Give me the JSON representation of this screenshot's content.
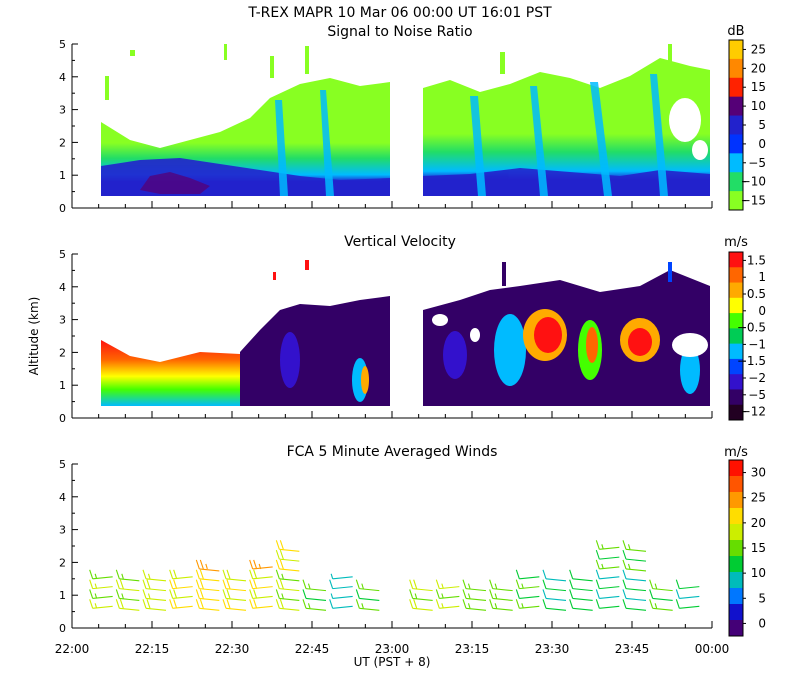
{
  "figure_title": "T-REX   MAPR 10 Mar 06   00:00 UT   16:01   PST",
  "shared_axes": {
    "xlabel": "UT  (PST + 8)",
    "ylabel": "Altitude (km)",
    "x_ticks": [
      "22:00",
      "22:15",
      "22:30",
      "22:45",
      "23:00",
      "23:15",
      "23:30",
      "23:45",
      "00:00"
    ],
    "y_ticks": [
      "0",
      "1",
      "2",
      "3",
      "4",
      "5"
    ],
    "xlim_minutes": [
      0,
      120
    ],
    "ylim_km": [
      0,
      5
    ]
  },
  "chart_data": [
    {
      "type": "heatmap",
      "title": "Signal to Noise Ratio",
      "units": "dB",
      "colorbar_labels": [
        "25",
        "20",
        "15",
        "10",
        "5",
        "0",
        "−5",
        "−10",
        "−15"
      ],
      "colorbar_colors": [
        "#ffcc00",
        "#ff8800",
        "#ff2200",
        "#550077",
        "#2222cc",
        "#0033ff",
        "#00bbff",
        "#22dd66",
        "#88ff22"
      ],
      "xlim_minutes": [
        0,
        120
      ],
      "ylim_km": [
        0,
        5
      ],
      "data_gap_minutes": [
        57,
        63
      ]
    },
    {
      "type": "heatmap",
      "title": "Vertical Velocity",
      "units": "m/s",
      "colorbar_labels": [
        "1.5",
        "1",
        "0.5",
        "0",
        "−0.5",
        "−1",
        "−1.5",
        "−2",
        "−5",
        "−12"
      ],
      "colorbar_colors": [
        "#ff1111",
        "#ff6600",
        "#ffaa00",
        "#ffff00",
        "#44ff00",
        "#00cc55",
        "#00bbff",
        "#0044ff",
        "#3311cc",
        "#330066",
        "#220022"
      ],
      "xlim_minutes": [
        0,
        120
      ],
      "ylim_km": [
        0,
        5
      ],
      "data_gap_minutes": [
        57,
        63
      ]
    },
    {
      "type": "scatter",
      "title": "FCA 5 Minute Averaged Winds",
      "units": "m/s",
      "colorbar_labels": [
        "30",
        "25",
        "20",
        "15",
        "10",
        "5",
        "0"
      ],
      "colorbar_colors": [
        "#ff1100",
        "#ff5500",
        "#ff9900",
        "#ffdd00",
        "#ccee00",
        "#66dd00",
        "#00cc33",
        "#00bbbb",
        "#0077ff",
        "#1111cc",
        "#440077"
      ],
      "xlim_minutes": [
        0,
        120
      ],
      "ylim_km": [
        0,
        5
      ],
      "x": [
        5,
        10,
        15,
        20,
        25,
        30,
        35,
        40,
        45,
        50,
        55,
        65,
        70,
        75,
        80,
        85,
        90,
        95,
        100,
        105,
        110,
        115
      ],
      "levels_km": [
        0.6,
        0.9,
        1.2,
        1.5,
        1.8,
        2.1,
        2.4
      ],
      "speed_by_time_ms": [
        19,
        20,
        21,
        23,
        24,
        23,
        22,
        20,
        15,
        11,
        16,
        20,
        19,
        18,
        17,
        15,
        13,
        14,
        13,
        12,
        15,
        13
      ],
      "top_km_by_time": [
        1.5,
        1.5,
        1.5,
        1.5,
        1.8,
        1.5,
        1.8,
        2.4,
        1.2,
        1.5,
        1.2,
        1.2,
        1.2,
        1.2,
        1.2,
        1.5,
        1.5,
        1.5,
        2.4,
        2.4,
        1.2,
        1.2
      ]
    }
  ]
}
